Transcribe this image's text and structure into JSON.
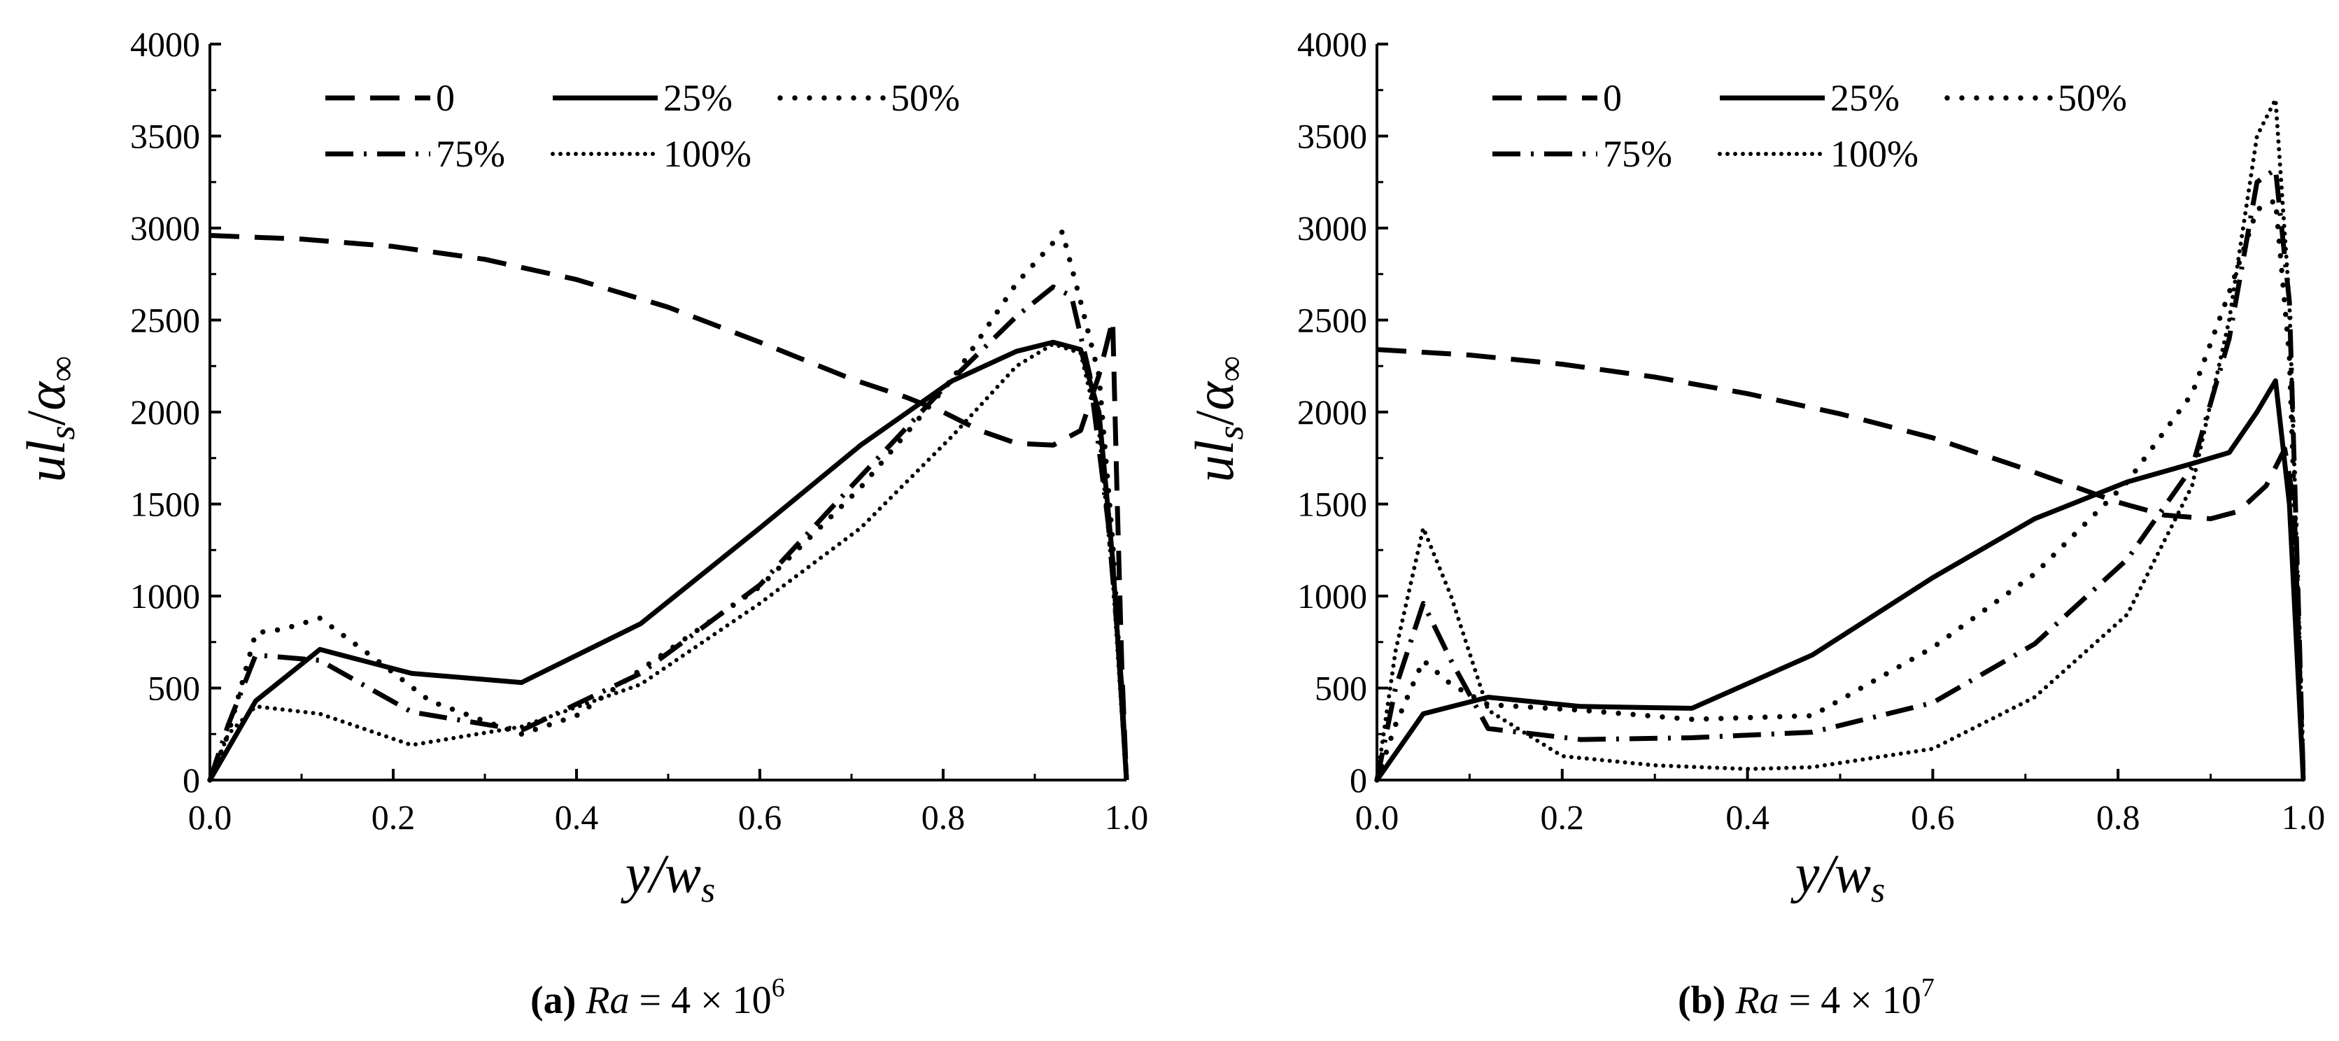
{
  "chart_data": [
    {
      "type": "line",
      "panel_letter": "a",
      "caption": {
        "letter": "(a)",
        "variable": "Ra",
        "text": " = 4 × 10",
        "exponent": "6"
      },
      "ylabel": {
        "var1": "ul",
        "sub1": "s",
        "slash": "/",
        "var2": "α",
        "sub2": "∞"
      },
      "xlabel": {
        "var1": "y/w",
        "sub1": "s"
      },
      "xlim": [
        0,
        1.0
      ],
      "ylim": [
        0,
        4000
      ],
      "xticks": [
        "0.0",
        "0.2",
        "0.4",
        "0.6",
        "0.8",
        "1.0"
      ],
      "yticks": [
        "0",
        "500",
        "1000",
        "1500",
        "2000",
        "2500",
        "3000",
        "3500",
        "4000"
      ],
      "legend_position": "top",
      "series": [
        {
          "name": "0",
          "style": "dash",
          "points": [
            [
              0,
              2960
            ],
            [
              0.1,
              2940
            ],
            [
              0.2,
              2900
            ],
            [
              0.3,
              2830
            ],
            [
              0.4,
              2720
            ],
            [
              0.5,
              2570
            ],
            [
              0.6,
              2380
            ],
            [
              0.7,
              2180
            ],
            [
              0.76,
              2080
            ],
            [
              0.8,
              2000
            ],
            [
              0.84,
              1900
            ],
            [
              0.88,
              1830
            ],
            [
              0.92,
              1820
            ],
            [
              0.95,
              1900
            ],
            [
              0.97,
              2200
            ],
            [
              0.985,
              2500
            ],
            [
              0.99,
              1500
            ],
            [
              0.995,
              600
            ],
            [
              1.0,
              0
            ]
          ]
        },
        {
          "name": "25%",
          "style": "solid",
          "points": [
            [
              0,
              0
            ],
            [
              0.05,
              430
            ],
            [
              0.12,
              710
            ],
            [
              0.22,
              580
            ],
            [
              0.34,
              530
            ],
            [
              0.47,
              850
            ],
            [
              0.6,
              1370
            ],
            [
              0.71,
              1820
            ],
            [
              0.81,
              2170
            ],
            [
              0.88,
              2330
            ],
            [
              0.92,
              2380
            ],
            [
              0.95,
              2340
            ],
            [
              0.97,
              2000
            ],
            [
              0.985,
              1200
            ],
            [
              0.995,
              400
            ],
            [
              1.0,
              0
            ]
          ]
        },
        {
          "name": "50%",
          "style": "dot-sparse",
          "points": [
            [
              0,
              0
            ],
            [
              0.02,
              250
            ],
            [
              0.05,
              800
            ],
            [
              0.08,
              820
            ],
            [
              0.12,
              880
            ],
            [
              0.18,
              660
            ],
            [
              0.24,
              430
            ],
            [
              0.3,
              320
            ],
            [
              0.34,
              250
            ],
            [
              0.4,
              350
            ],
            [
              0.47,
              600
            ],
            [
              0.6,
              1050
            ],
            [
              0.71,
              1590
            ],
            [
              0.81,
              2180
            ],
            [
              0.88,
              2700
            ],
            [
              0.92,
              2920
            ],
            [
              0.93,
              2980
            ],
            [
              0.95,
              2600
            ],
            [
              0.97,
              2200
            ],
            [
              0.985,
              1300
            ],
            [
              0.995,
              400
            ],
            [
              1.0,
              0
            ]
          ]
        },
        {
          "name": "75%",
          "style": "dash-dot",
          "points": [
            [
              0,
              0
            ],
            [
              0.02,
              300
            ],
            [
              0.05,
              680
            ],
            [
              0.12,
              650
            ],
            [
              0.22,
              370
            ],
            [
              0.34,
              270
            ],
            [
              0.47,
              580
            ],
            [
              0.6,
              1060
            ],
            [
              0.71,
              1650
            ],
            [
              0.81,
              2180
            ],
            [
              0.88,
              2520
            ],
            [
              0.92,
              2680
            ],
            [
              0.94,
              2630
            ],
            [
              0.96,
              2200
            ],
            [
              0.98,
              1400
            ],
            [
              0.995,
              500
            ],
            [
              1.0,
              0
            ]
          ]
        },
        {
          "name": "100%",
          "style": "dot-dense",
          "points": [
            [
              0,
              0
            ],
            [
              0.02,
              250
            ],
            [
              0.05,
              400
            ],
            [
              0.12,
              360
            ],
            [
              0.22,
              190
            ],
            [
              0.34,
              290
            ],
            [
              0.47,
              520
            ],
            [
              0.6,
              960
            ],
            [
              0.71,
              1370
            ],
            [
              0.81,
              1870
            ],
            [
              0.88,
              2250
            ],
            [
              0.92,
              2370
            ],
            [
              0.95,
              2320
            ],
            [
              0.97,
              1900
            ],
            [
              0.985,
              1100
            ],
            [
              0.995,
              350
            ],
            [
              1.0,
              0
            ]
          ]
        }
      ]
    },
    {
      "type": "line",
      "panel_letter": "b",
      "caption": {
        "letter": "(b)",
        "variable": "Ra",
        "text": " = 4 × 10",
        "exponent": "7"
      },
      "ylabel": {
        "var1": "ul",
        "sub1": "s",
        "slash": "/",
        "var2": "α",
        "sub2": "∞"
      },
      "xlabel": {
        "var1": "y/w",
        "sub1": "s"
      },
      "xlim": [
        0,
        1.0
      ],
      "ylim": [
        0,
        4000
      ],
      "xticks": [
        "0.0",
        "0.2",
        "0.4",
        "0.6",
        "0.8",
        "1.0"
      ],
      "yticks": [
        "0",
        "500",
        "1000",
        "1500",
        "2000",
        "2500",
        "3000",
        "3500",
        "4000"
      ],
      "legend_position": "top",
      "series": [
        {
          "name": "0",
          "style": "dash",
          "points": [
            [
              0,
              2340
            ],
            [
              0.1,
              2310
            ],
            [
              0.2,
              2260
            ],
            [
              0.3,
              2190
            ],
            [
              0.4,
              2100
            ],
            [
              0.5,
              1990
            ],
            [
              0.6,
              1860
            ],
            [
              0.7,
              1690
            ],
            [
              0.8,
              1510
            ],
            [
              0.85,
              1440
            ],
            [
              0.9,
              1420
            ],
            [
              0.93,
              1460
            ],
            [
              0.96,
              1600
            ],
            [
              0.98,
              1800
            ],
            [
              0.99,
              1500
            ],
            [
              1.0,
              0
            ]
          ]
        },
        {
          "name": "25%",
          "style": "solid",
          "points": [
            [
              0,
              0
            ],
            [
              0.05,
              360
            ],
            [
              0.12,
              450
            ],
            [
              0.22,
              400
            ],
            [
              0.34,
              390
            ],
            [
              0.47,
              680
            ],
            [
              0.6,
              1100
            ],
            [
              0.71,
              1420
            ],
            [
              0.81,
              1620
            ],
            [
              0.88,
              1720
            ],
            [
              0.92,
              1780
            ],
            [
              0.95,
              2000
            ],
            [
              0.97,
              2170
            ],
            [
              0.985,
              1500
            ],
            [
              0.995,
              500
            ],
            [
              1.0,
              0
            ]
          ]
        },
        {
          "name": "50%",
          "style": "dot-sparse",
          "points": [
            [
              0,
              0
            ],
            [
              0.02,
              300
            ],
            [
              0.05,
              650
            ],
            [
              0.08,
              520
            ],
            [
              0.12,
              410
            ],
            [
              0.22,
              380
            ],
            [
              0.34,
              330
            ],
            [
              0.47,
              350
            ],
            [
              0.6,
              720
            ],
            [
              0.71,
              1120
            ],
            [
              0.81,
              1620
            ],
            [
              0.88,
              2100
            ],
            [
              0.92,
              2650
            ],
            [
              0.95,
              3100
            ],
            [
              0.97,
              3150
            ],
            [
              0.985,
              2300
            ],
            [
              0.995,
              800
            ],
            [
              1.0,
              0
            ]
          ]
        },
        {
          "name": "75%",
          "style": "dash-dot",
          "points": [
            [
              0,
              0
            ],
            [
              0.02,
              500
            ],
            [
              0.05,
              960
            ],
            [
              0.08,
              650
            ],
            [
              0.12,
              280
            ],
            [
              0.22,
              220
            ],
            [
              0.34,
              230
            ],
            [
              0.47,
              260
            ],
            [
              0.6,
              420
            ],
            [
              0.71,
              740
            ],
            [
              0.81,
              1200
            ],
            [
              0.88,
              1700
            ],
            [
              0.92,
              2400
            ],
            [
              0.95,
              3250
            ],
            [
              0.97,
              3320
            ],
            [
              0.985,
              2600
            ],
            [
              0.995,
              900
            ],
            [
              1.0,
              0
            ]
          ]
        },
        {
          "name": "100%",
          "style": "dot-dense",
          "points": [
            [
              0,
              0
            ],
            [
              0.02,
              700
            ],
            [
              0.05,
              1370
            ],
            [
              0.08,
              1000
            ],
            [
              0.12,
              380
            ],
            [
              0.2,
              130
            ],
            [
              0.3,
              80
            ],
            [
              0.4,
              60
            ],
            [
              0.47,
              70
            ],
            [
              0.6,
              170
            ],
            [
              0.71,
              450
            ],
            [
              0.81,
              900
            ],
            [
              0.88,
              1600
            ],
            [
              0.92,
              2500
            ],
            [
              0.95,
              3500
            ],
            [
              0.97,
              3700
            ],
            [
              0.985,
              2600
            ],
            [
              0.995,
              900
            ],
            [
              1.0,
              0
            ]
          ]
        }
      ]
    }
  ]
}
